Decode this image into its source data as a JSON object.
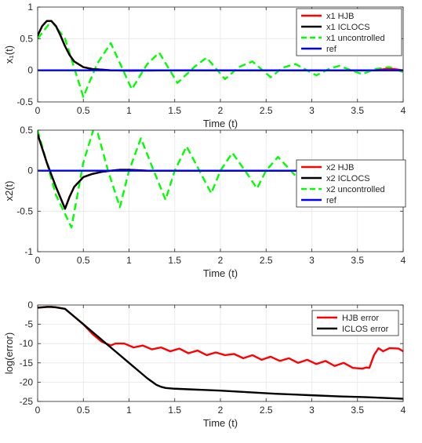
{
  "chart_data": [
    {
      "type": "line",
      "xlabel": "Time (t)",
      "ylabel": "x₁(t)",
      "xlim": [
        0,
        4
      ],
      "ylim": [
        -0.5,
        1
      ],
      "xticks": [
        "0",
        "0.5",
        "1",
        "1.5",
        "2",
        "2.5",
        "3",
        "3.5",
        "4"
      ],
      "yticks": [
        "-0.5",
        "0",
        "0.5",
        "1"
      ],
      "grid": true,
      "legend_position": "top-right",
      "series": [
        {
          "name": "x1 HJB",
          "color": "#ff0000",
          "style": "solid",
          "x": [
            0,
            0.05,
            0.1,
            0.15,
            0.2,
            0.25,
            0.3,
            0.35,
            0.4,
            0.5,
            0.6,
            0.7,
            0.8,
            1,
            1.5,
            2,
            2.5,
            3,
            3.5,
            3.6,
            3.7,
            3.8,
            3.9,
            4
          ],
          "y": [
            0.55,
            0.7,
            0.78,
            0.78,
            0.7,
            0.55,
            0.38,
            0.24,
            0.14,
            0.05,
            0.02,
            0.01,
            0.0,
            -0.005,
            0,
            0,
            0,
            0,
            0,
            0,
            0.0,
            0.02,
            0.02,
            0.0
          ]
        },
        {
          "name": "x1 ICLOCS",
          "color": "#000000",
          "style": "solid",
          "x": [
            0,
            0.05,
            0.1,
            0.15,
            0.2,
            0.25,
            0.3,
            0.35,
            0.4,
            0.5,
            0.6,
            0.7,
            0.8,
            1,
            1.5,
            2,
            2.5,
            3,
            3.5,
            4
          ],
          "y": [
            0.55,
            0.7,
            0.78,
            0.78,
            0.7,
            0.55,
            0.38,
            0.24,
            0.14,
            0.05,
            0.02,
            0.01,
            0.0,
            -0.005,
            0,
            0,
            0,
            0,
            0,
            0
          ]
        },
        {
          "name": "x1 uncontrolled",
          "color": "#00ff00",
          "style": "dashed",
          "x": [
            0,
            0.15,
            0.3,
            0.5,
            0.65,
            0.8,
            1.03,
            1.2,
            1.33,
            1.53,
            1.72,
            1.85,
            2.05,
            2.2,
            2.35,
            2.55,
            2.68,
            2.82,
            3.05,
            3.2,
            3.3,
            3.55,
            3.7,
            3.85,
            4
          ],
          "y": [
            0.5,
            0.78,
            0.5,
            -0.42,
            0.1,
            0.43,
            -0.3,
            0.1,
            0.28,
            -0.2,
            0.06,
            0.2,
            -0.14,
            0.05,
            0.14,
            -0.11,
            0.04,
            0.1,
            -0.08,
            0.03,
            0.07,
            -0.06,
            0.02,
            0.05,
            -0.03
          ]
        },
        {
          "name": "ref",
          "color": "#0000ff",
          "style": "solid",
          "x": [
            0,
            4
          ],
          "y": [
            0,
            0
          ]
        }
      ]
    },
    {
      "type": "line",
      "xlabel": "Time (t)",
      "ylabel": "x2(t)",
      "xlim": [
        0,
        4
      ],
      "ylim": [
        -1,
        0.5
      ],
      "xticks": [
        "0",
        "0.5",
        "1",
        "1.5",
        "2",
        "2.5",
        "3",
        "3.5",
        "4"
      ],
      "yticks": [
        "-1",
        "-0.5",
        "0",
        "0.5"
      ],
      "grid": true,
      "legend_position": "top-right",
      "series": [
        {
          "name": "x2 HJB",
          "color": "#ff0000",
          "style": "solid",
          "x": [
            0,
            0.1,
            0.2,
            0.3,
            0.35,
            0.4,
            0.5,
            0.6,
            0.7,
            0.8,
            0.9,
            1.0,
            1.2,
            1.5,
            2,
            2.5,
            3,
            3.5,
            4
          ],
          "y": [
            0.45,
            0.1,
            -0.2,
            -0.47,
            -0.32,
            -0.2,
            -0.08,
            -0.04,
            -0.015,
            0.0,
            0.01,
            0.01,
            0.0,
            0,
            0,
            0,
            0,
            0,
            0
          ]
        },
        {
          "name": "x2 ICLOCS",
          "color": "#000000",
          "style": "solid",
          "x": [
            0,
            0.1,
            0.2,
            0.3,
            0.35,
            0.4,
            0.5,
            0.6,
            0.7,
            0.8,
            0.9,
            1.0,
            1.2,
            1.5,
            2,
            2.5,
            3,
            3.5,
            4
          ],
          "y": [
            0.45,
            0.1,
            -0.2,
            -0.47,
            -0.32,
            -0.2,
            -0.08,
            -0.04,
            -0.015,
            0.0,
            0.01,
            0.01,
            0.0,
            0,
            0,
            0,
            0,
            0,
            0
          ]
        },
        {
          "name": "x2 uncontrolled",
          "color": "#00ff00",
          "style": "dashed",
          "x": [
            0,
            0.2,
            0.37,
            0.5,
            0.63,
            0.77,
            0.9,
            1.0,
            1.13,
            1.27,
            1.4,
            1.5,
            1.63,
            1.77,
            1.9,
            2.0,
            2.13,
            2.27,
            2.4,
            2.5,
            2.63,
            2.77,
            2.9,
            3.0,
            3.13,
            3.27,
            3.4,
            3.5,
            3.63,
            3.77,
            3.9,
            4.0
          ],
          "y": [
            0.5,
            -0.3,
            -0.7,
            0.1,
            0.58,
            0.0,
            -0.45,
            0.0,
            0.4,
            0.0,
            -0.36,
            0.0,
            0.3,
            0.0,
            -0.28,
            0.0,
            0.22,
            0.0,
            -0.22,
            0.0,
            0.17,
            0.0,
            -0.16,
            0.0,
            0.12,
            0.0,
            -0.12,
            0.0,
            0.09,
            0.0,
            -0.09,
            0.0
          ]
        },
        {
          "name": "ref",
          "color": "#0000ff",
          "style": "solid",
          "x": [
            0,
            4
          ],
          "y": [
            0,
            0
          ]
        }
      ]
    },
    {
      "type": "line",
      "xlabel": "Time (t)",
      "ylabel": "log(error)",
      "xlim": [
        0,
        4
      ],
      "ylim": [
        -25,
        0
      ],
      "xticks": [
        "0",
        "0.5",
        "1",
        "1.5",
        "2",
        "2.5",
        "3",
        "3.5",
        "4"
      ],
      "yticks": [
        "-25",
        "-20",
        "-15",
        "-10",
        "-5",
        "0"
      ],
      "grid": true,
      "legend_position": "top-right",
      "series": [
        {
          "name": "HJB error",
          "color": "#ff0000",
          "style": "solid",
          "x": [
            0,
            0.1,
            0.15,
            0.2,
            0.3,
            0.4,
            0.5,
            0.6,
            0.7,
            0.8,
            0.85,
            0.95,
            1.05,
            1.15,
            1.25,
            1.35,
            1.45,
            1.55,
            1.65,
            1.75,
            1.85,
            1.95,
            2.05,
            2.15,
            2.25,
            2.35,
            2.45,
            2.55,
            2.65,
            2.75,
            2.85,
            2.95,
            3.05,
            3.15,
            3.25,
            3.35,
            3.45,
            3.55,
            3.6,
            3.63,
            3.68,
            3.73,
            3.78,
            3.85,
            3.95,
            4.0
          ],
          "y": [
            -0.7,
            -0.5,
            -0.5,
            -0.6,
            -1.0,
            -3.0,
            -5.0,
            -7.5,
            -9.5,
            -10.5,
            -10.0,
            -10.0,
            -11.0,
            -10.5,
            -11.5,
            -11.0,
            -12.0,
            -11.3,
            -12.5,
            -11.8,
            -13.0,
            -12.3,
            -13.0,
            -12.7,
            -13.8,
            -13.0,
            -14.2,
            -13.4,
            -14.5,
            -13.8,
            -15.0,
            -14.2,
            -15.3,
            -14.5,
            -15.8,
            -15.0,
            -16.3,
            -16.5,
            -16.2,
            -16.3,
            -13.0,
            -11.2,
            -12.0,
            -11.2,
            -11.3,
            -12.0
          ]
        },
        {
          "name": "ICLOS error",
          "color": "#000000",
          "style": "solid",
          "x": [
            0,
            0.1,
            0.15,
            0.2,
            0.3,
            0.4,
            0.5,
            0.6,
            0.7,
            0.8,
            0.9,
            1.0,
            1.1,
            1.2,
            1.3,
            1.35,
            1.4,
            1.5,
            1.7,
            2.0,
            2.3,
            2.6,
            3.0,
            3.3,
            3.6,
            3.9,
            4.0
          ],
          "y": [
            -0.7,
            -0.5,
            -0.5,
            -0.6,
            -1.0,
            -3.0,
            -5.0,
            -7.0,
            -9.0,
            -11.0,
            -13.0,
            -15.0,
            -17.0,
            -19.0,
            -20.7,
            -21.2,
            -21.5,
            -21.7,
            -21.9,
            -22.2,
            -22.6,
            -23.0,
            -23.4,
            -23.7,
            -23.9,
            -24.2,
            -24.3
          ]
        }
      ]
    }
  ]
}
